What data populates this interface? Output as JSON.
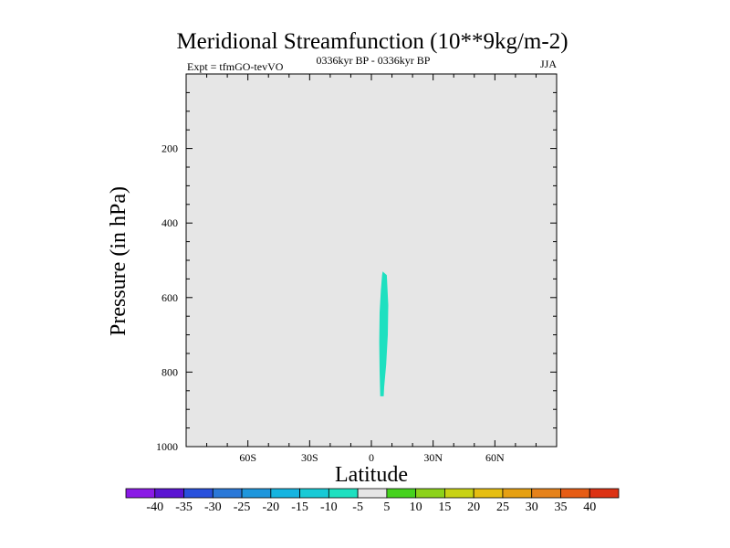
{
  "chart_data": {
    "type": "contour",
    "title": "Meridional Streamfunction (10**9kg/m-2)",
    "subtitle_left": "Expt = tfmGO-tevVO",
    "subtitle_center": "0336kyr BP - 0336kyr BP",
    "subtitle_right": "JJA",
    "xlabel": "Latitude",
    "ylabel": "Pressure (in hPa)",
    "xlim": [
      -90,
      90
    ],
    "ylim": [
      1000,
      0
    ],
    "x_ticks": [
      {
        "value": -60,
        "label": "60S"
      },
      {
        "value": -30,
        "label": "30S"
      },
      {
        "value": 0,
        "label": "0"
      },
      {
        "value": 30,
        "label": "30N"
      },
      {
        "value": 60,
        "label": "60N"
      }
    ],
    "y_ticks": [
      {
        "value": 200,
        "label": "200"
      },
      {
        "value": 400,
        "label": "400"
      },
      {
        "value": 600,
        "label": "600"
      },
      {
        "value": 800,
        "label": "800"
      },
      {
        "value": 1000,
        "label": "1000"
      }
    ],
    "background_fill": "#e6e6e6",
    "regions": [
      {
        "level_range": [
          -10,
          -5
        ],
        "color": "#1ee0c0",
        "outline": [
          [
            5.5,
            530
          ],
          [
            7.5,
            540
          ],
          [
            8.2,
            620
          ],
          [
            8.0,
            700
          ],
          [
            7.2,
            780
          ],
          [
            6.2,
            840
          ],
          [
            6.0,
            865
          ],
          [
            4.3,
            865
          ],
          [
            4.0,
            800
          ],
          [
            3.8,
            720
          ],
          [
            4.0,
            640
          ],
          [
            4.6,
            580
          ],
          [
            5.2,
            540
          ]
        ]
      }
    ],
    "colorbar": {
      "levels": [
        -40,
        -35,
        -30,
        -25,
        -20,
        -15,
        -10,
        -5,
        5,
        10,
        15,
        20,
        25,
        30,
        35,
        40
      ],
      "colors": [
        "#8a1ae6",
        "#5a14d2",
        "#2850dc",
        "#2a78d8",
        "#1e96dc",
        "#16b4e0",
        "#18cad6",
        "#1ee0c0",
        "#e6e6e6",
        "#46d21e",
        "#8cd21a",
        "#c8d214",
        "#e6be12",
        "#e6a012",
        "#e6821a",
        "#e65c14",
        "#dc3214"
      ]
    }
  }
}
